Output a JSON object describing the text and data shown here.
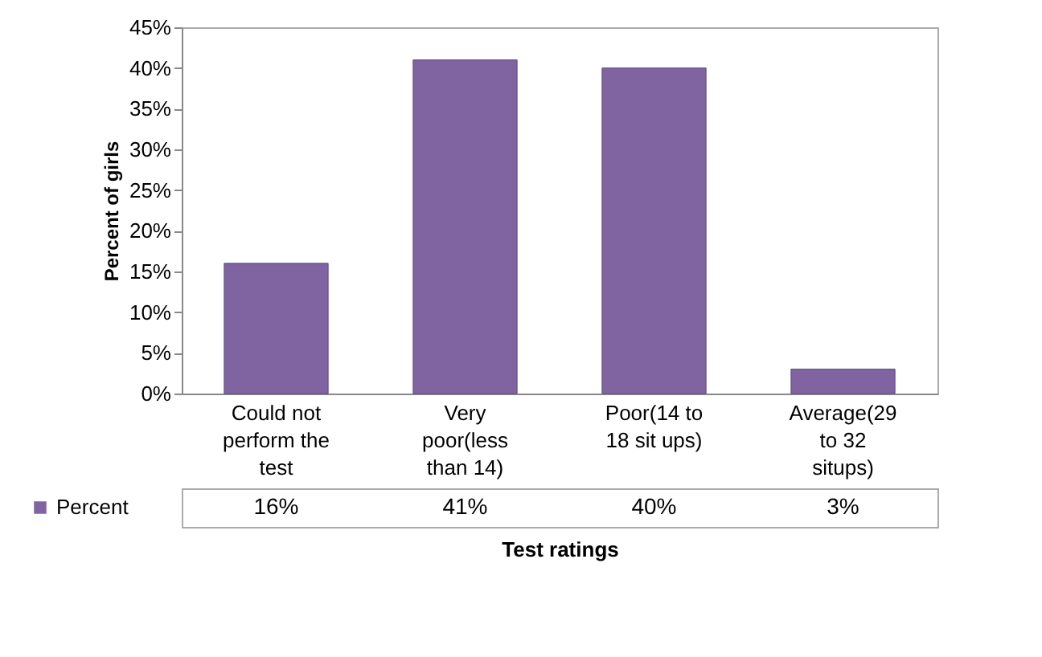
{
  "chart_data": {
    "type": "bar",
    "categories": [
      "Could not perform the test",
      "Very poor(less than 14)",
      "Poor(14 to 18 sit ups)",
      "Average(29 to 32 situps)"
    ],
    "series": [
      {
        "name": "Percent",
        "color": "#8064a2",
        "values": [
          16,
          41,
          40,
          3
        ]
      }
    ],
    "value_labels": [
      "16%",
      "41%",
      "40%",
      "3%"
    ],
    "xlabel": "Test ratings",
    "ylabel": "Percent of girls",
    "ylim": [
      0,
      45
    ],
    "yticks": [
      {
        "value": 0,
        "label": "0%"
      },
      {
        "value": 5,
        "label": "5%"
      },
      {
        "value": 10,
        "label": "10%"
      },
      {
        "value": 15,
        "label": "15%"
      },
      {
        "value": 20,
        "label": "20%"
      },
      {
        "value": 25,
        "label": "25%"
      },
      {
        "value": 30,
        "label": "30%"
      },
      {
        "value": 35,
        "label": "35%"
      },
      {
        "value": 40,
        "label": "40%"
      },
      {
        "value": 45,
        "label": "45%"
      }
    ],
    "grid": false
  }
}
